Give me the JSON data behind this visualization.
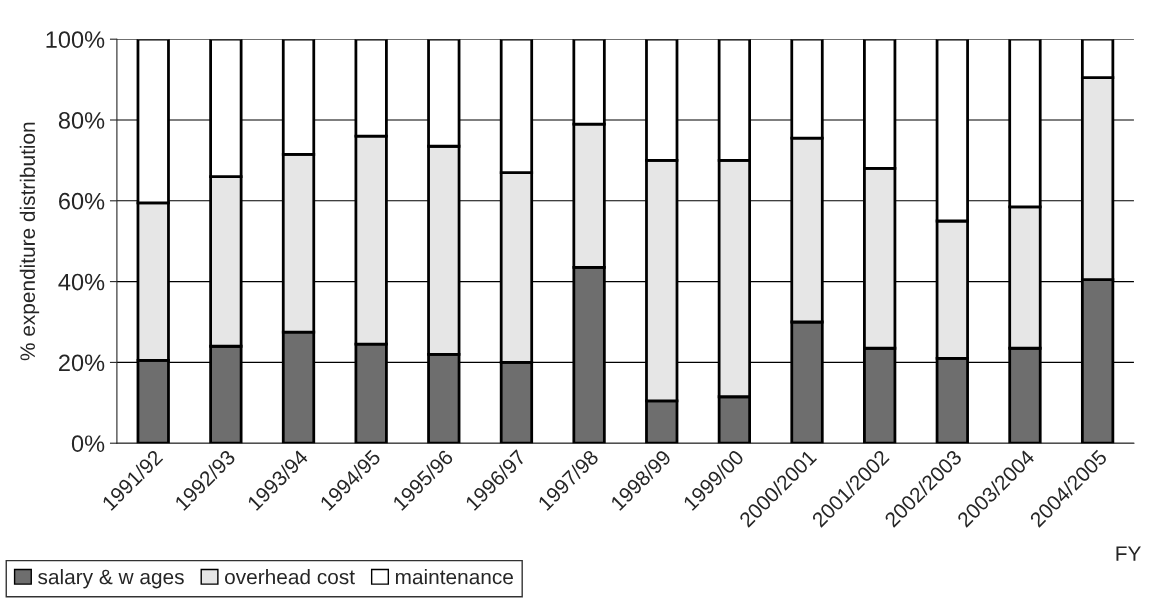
{
  "chart_data": {
    "type": "bar",
    "stacked": true,
    "ylabel": "% expenditure distribution",
    "xlabel": "FY",
    "categories": [
      "1991/92",
      "1992/93",
      "1993/94",
      "1994/95",
      "1995/96",
      "1996/97",
      "1997/98",
      "1998/99",
      "1999/00",
      "2000/2001",
      "2001/2002",
      "2002/2003",
      "2003/2004",
      "2004/2005"
    ],
    "series": [
      {
        "name": "salary & w ages",
        "color": "#6e6e6e",
        "values": [
          20.5,
          24,
          27.5,
          24.5,
          22,
          20,
          43.5,
          10.5,
          11.5,
          30,
          23.5,
          21,
          23.5,
          40.5
        ]
      },
      {
        "name": "overhead cost",
        "color": "#e6e6e6",
        "values": [
          39,
          42,
          44,
          51.5,
          51.5,
          47,
          35.5,
          59.5,
          58.5,
          45.5,
          44.5,
          34,
          35,
          50
        ]
      },
      {
        "name": "maintenance",
        "color": "#ffffff",
        "values": [
          40.5,
          34,
          28.5,
          24,
          26.5,
          33,
          21,
          30,
          30,
          24.5,
          32,
          45,
          41.5,
          9.5
        ]
      }
    ],
    "ylim": [
      0,
      100
    ],
    "yticks": [
      {
        "value": 0,
        "label": "0%"
      },
      {
        "value": 20,
        "label": "20%"
      },
      {
        "value": 40,
        "label": "40%"
      },
      {
        "value": 60,
        "label": "60%"
      },
      {
        "value": 80,
        "label": "80%"
      },
      {
        "value": 100,
        "label": "100%"
      }
    ],
    "grid": "y",
    "legend": "bottom left"
  }
}
